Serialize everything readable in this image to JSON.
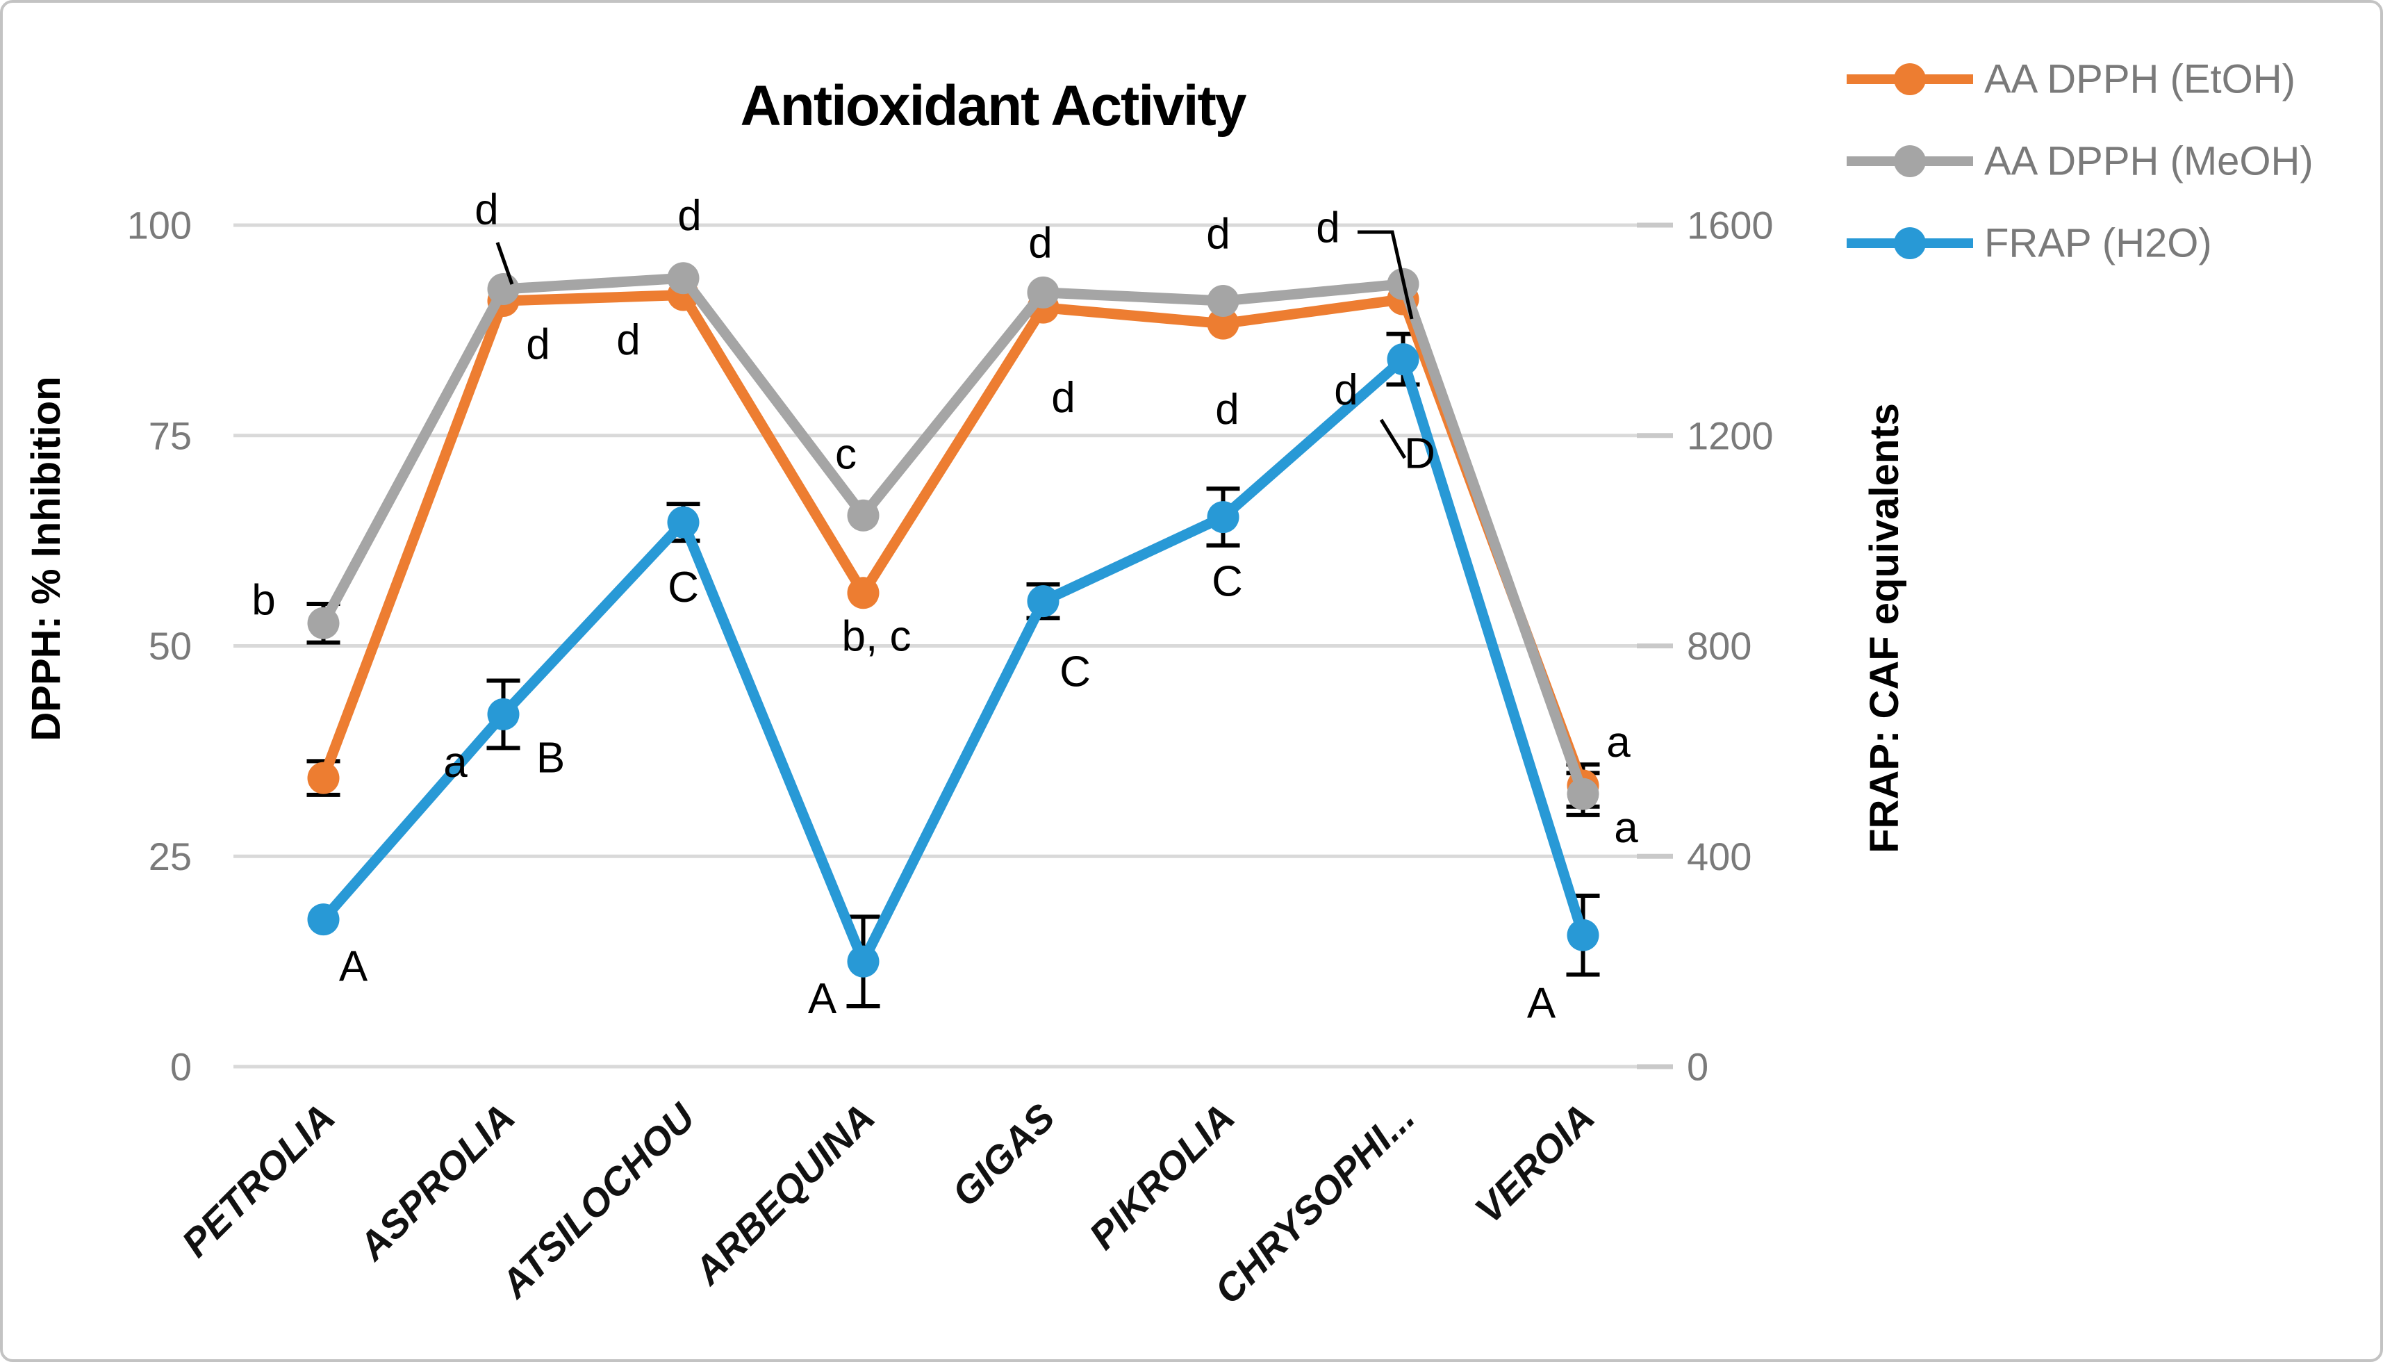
{
  "figure": {
    "background": "#ffffff",
    "border_color": "#c3c3c3"
  },
  "colors": {
    "grid": "#d9d9d9",
    "axis_tick": "#c9c9c9",
    "tick_label": "#7a7a7a",
    "legend_text": "#7a7a7a",
    "error_bar": "#000000",
    "annotation": "#000000",
    "series_etoh": "#ED7D31",
    "series_meoh": "#A5A5A5",
    "series_frap": "#2899D6"
  },
  "chart_data": {
    "type": "line",
    "title": "Antioxidant Activity",
    "categories": [
      "PETROLIA",
      "ASPROLIA",
      "ATSILOCHOU",
      "ARBEQUINA",
      "GIGAS",
      "PIKROLIA",
      "CHRYSOPHI...",
      "VEROIA"
    ],
    "left_axis": {
      "label": "DPPH: % Inhibition",
      "ticks": [
        0,
        25,
        50,
        75,
        100
      ],
      "range": [
        0,
        100
      ]
    },
    "right_axis": {
      "label": "FRAP: CAF equivalents",
      "ticks": [
        0,
        400,
        800,
        1200,
        1600
      ],
      "range": [
        0,
        1600
      ]
    },
    "grid": "horizontal",
    "legend_position": "top-right",
    "series": [
      {
        "name": "AA DPPH (EtOH)",
        "color": "#ED7D31",
        "axis": "left",
        "values": [
          34.3,
          91.0,
          91.7,
          56.3,
          90.2,
          88.3,
          91.2,
          33.4
        ],
        "errors": [
          2,
          0,
          0,
          0,
          0,
          0,
          0,
          2.5
        ],
        "point_labels": [
          {
            "text": "a",
            "dx": 190,
            "dy": -22
          },
          {
            "text": "d",
            "dx": 50,
            "dy": 63
          },
          {
            "text": "d",
            "dx": -79,
            "dy": 65
          },
          {
            "text": "b, c",
            "dx": 19,
            "dy": 63
          },
          {
            "text": "d",
            "dx": 29,
            "dy": 130
          },
          {
            "text": "d",
            "dx": 6,
            "dy": 124
          },
          {
            "text": "d",
            "dx": -82,
            "dy": 131
          },
          {
            "text": "a",
            "dx": 51,
            "dy": -62
          }
        ]
      },
      {
        "name": "AA DPPH (MeOH)",
        "color": "#A5A5A5",
        "axis": "left",
        "values": [
          52.7,
          92.4,
          93.7,
          65.5,
          92.0,
          91.0,
          93.0,
          32.4
        ],
        "errors": [
          2.3,
          0,
          0,
          0,
          0,
          0,
          0,
          2.5
        ],
        "point_labels": [
          {
            "text": "b",
            "dx": -86,
            "dy": -33
          },
          {
            "text": "d",
            "dx": -24,
            "dy": -114
          },
          {
            "text": "d",
            "dx": 9,
            "dy": -90
          },
          {
            "text": "c",
            "dx": -25,
            "dy": -88
          },
          {
            "text": "d",
            "dx": -4,
            "dy": -71
          },
          {
            "text": "d",
            "dx": -7,
            "dy": -96
          },
          {
            "text": "d",
            "dx": -108,
            "dy": -81
          },
          {
            "text": "a",
            "dx": 62,
            "dy": 49
          }
        ]
      },
      {
        "name": "FRAP (H2O)",
        "color": "#2899D6",
        "axis": "right",
        "values": [
          280,
          670,
          1035,
          200,
          885,
          1045,
          1345,
          250
        ],
        "errors": [
          0,
          64,
          35,
          85,
          32,
          54,
          48,
          75
        ],
        "point_labels": [
          {
            "text": "A",
            "dx": 43,
            "dy": 68
          },
          {
            "text": "B",
            "dx": 68,
            "dy": 63
          },
          {
            "text": "C",
            "dx": 0,
            "dy": 94
          },
          {
            "text": "A",
            "dx": -59,
            "dy": 54
          },
          {
            "text": "C",
            "dx": 46,
            "dy": 102
          },
          {
            "text": "C",
            "dx": 6,
            "dy": 93
          },
          {
            "text": "D",
            "dx": 24,
            "dy": 136
          },
          {
            "text": "A",
            "dx": -60,
            "dy": 98
          }
        ]
      }
    ],
    "leader_lines": [
      {
        "points": [
          [
            712,
            345
          ],
          [
            733,
            405
          ]
        ]
      },
      {
        "points": [
          [
            1950,
            330
          ],
          [
            2000,
            330
          ],
          [
            2028,
            455
          ]
        ]
      },
      {
        "points": [
          [
            1984,
            600
          ],
          [
            2018,
            655
          ]
        ]
      }
    ]
  }
}
